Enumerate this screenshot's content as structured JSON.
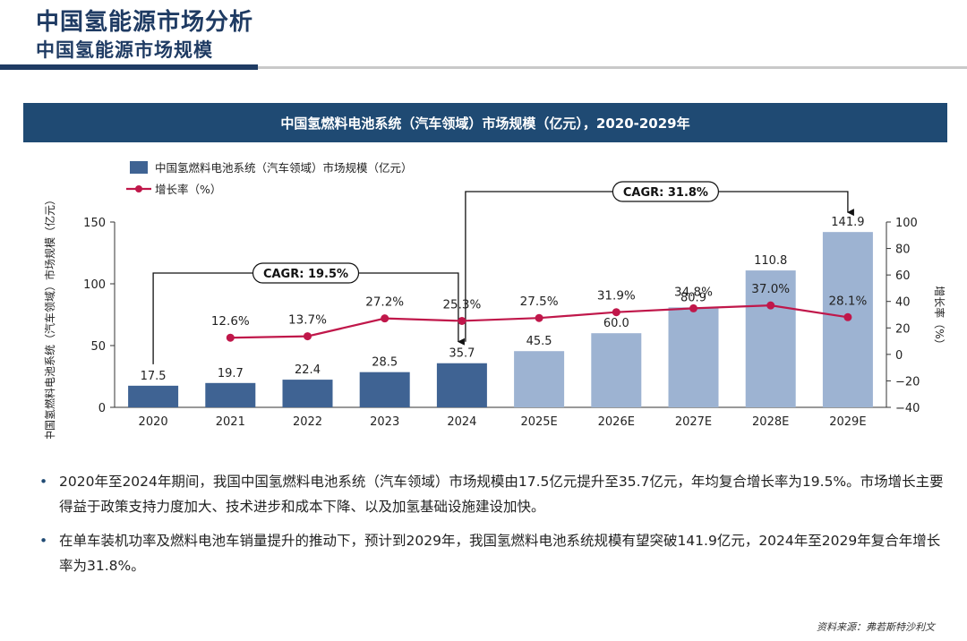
{
  "header": {
    "title": "中国氢能源市场分析",
    "subtitle": "中国氢能源市场规模"
  },
  "chart_banner": "中国氢燃料电池系统（汽车领域）市场规模（亿元），2020-2029年",
  "chart_data": {
    "type": "bar",
    "categories": [
      "2020",
      "2021",
      "2022",
      "2023",
      "2024",
      "2025E",
      "2026E",
      "2027E",
      "2028E",
      "2029E"
    ],
    "series": [
      {
        "name": "中国氢燃料电池系统（汽车领域）市场规模（亿元）",
        "type": "bar",
        "axis": "left",
        "values": [
          17.5,
          19.7,
          22.4,
          28.5,
          35.7,
          45.5,
          60.0,
          80.9,
          110.8,
          141.9
        ],
        "labels": [
          "17.5",
          "19.7",
          "22.4",
          "28.5",
          "35.7",
          "45.5",
          "60.0",
          "80.9",
          "110.8",
          "141.9"
        ],
        "colors": [
          "#3f6393",
          "#3f6393",
          "#3f6393",
          "#3f6393",
          "#3f6393",
          "#9db3d2",
          "#9db3d2",
          "#9db3d2",
          "#9db3d2",
          "#9db3d2"
        ]
      },
      {
        "name": "增长率（%）",
        "type": "line",
        "axis": "right",
        "values": [
          null,
          12.6,
          13.7,
          27.2,
          25.3,
          27.5,
          31.9,
          34.8,
          37.0,
          28.1
        ],
        "labels": [
          "",
          "12.6%",
          "13.7%",
          "27.2%",
          "25.3%",
          "27.5%",
          "31.9%",
          "34.8%",
          "37.0%",
          "28.1%"
        ],
        "color": "#c0174a"
      }
    ],
    "ylabel_left": "中国氢燃料电池系统（汽车领域）市场规模（亿元）",
    "ylabel_right": "增长率（%）",
    "ylim_left": [
      0,
      150
    ],
    "yticks_left": [
      "0",
      "50",
      "100",
      "150"
    ],
    "ylim_right": [
      -40,
      100
    ],
    "yticks_right": [
      "−40",
      "−20",
      "0",
      "20",
      "40",
      "60",
      "80",
      "100"
    ],
    "legend_position": "top-left",
    "annotations": [
      {
        "text": "CAGR: 19.5%",
        "from": "2020",
        "to": "2024"
      },
      {
        "text": "CAGR: 31.8%",
        "from": "2024",
        "to": "2029E"
      }
    ]
  },
  "bullets": [
    "2020年至2024年期间，我国中国氢燃料电池系统（汽车领域）市场规模由17.5亿元提升至35.7亿元，年均复合增长率为19.5%。市场增长主要得益于政策支持力度加大、技术进步和成本下降、以及加氢基础设施建设加快。",
    "在单车装机功率及燃料电池车销量提升的推动下，预计到2029年，我国氢燃料电池系统规模有望突破141.9亿元，2024年至2029年复合年增长率为31.8%。"
  ],
  "bullet_marker": "•",
  "source": "资料来源：弗若斯特沙利文"
}
